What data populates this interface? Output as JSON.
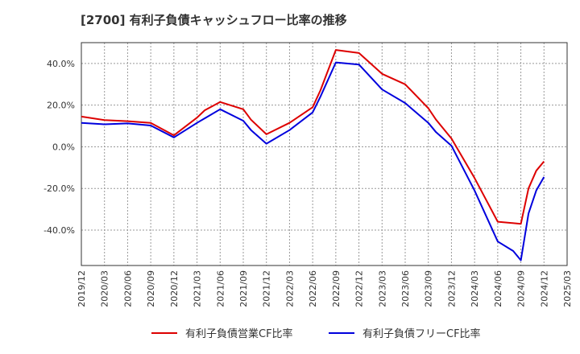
{
  "chart_data": {
    "type": "line",
    "title": "[2700]  有利子負債キャッシュフロー比率の推移",
    "xlabel": "",
    "ylabel": "",
    "ylim": [
      -57,
      50
    ],
    "grid": true,
    "legend": "bottom-center",
    "x_ticks": [
      "2019/12",
      "2020/03",
      "2020/06",
      "2020/09",
      "2020/12",
      "2021/03",
      "2021/06",
      "2021/09",
      "2021/12",
      "2022/03",
      "2022/06",
      "2022/09",
      "2022/12",
      "2023/03",
      "2023/06",
      "2023/09",
      "2023/12",
      "2024/03",
      "2024/06",
      "2024/09",
      "2024/12",
      "2025/03"
    ],
    "y_ticks": [
      {
        "value": 40,
        "label": "40.0%"
      },
      {
        "value": 20,
        "label": "20.0%"
      },
      {
        "value": 0,
        "label": "0.0%"
      },
      {
        "value": -20,
        "label": "-20.0%"
      },
      {
        "value": -40,
        "label": "-40.0%"
      }
    ],
    "series": [
      {
        "name": "有利子負債営業CF比率",
        "color": "#dd0000",
        "points": [
          [
            "2019/12",
            14.5
          ],
          [
            "2020/03",
            12.8
          ],
          [
            "2020/06",
            12.3
          ],
          [
            "2020/09",
            11.5
          ],
          [
            "2020/12",
            5.5
          ],
          [
            "2021/03",
            14.0
          ],
          [
            "2021/04",
            17.5
          ],
          [
            "2021/06",
            21.5
          ],
          [
            "2021/09",
            18.0
          ],
          [
            "2021/10",
            13.0
          ],
          [
            "2021/12",
            6.0
          ],
          [
            "2022/03",
            11.5
          ],
          [
            "2022/06",
            19.0
          ],
          [
            "2022/07",
            27.0
          ],
          [
            "2022/09",
            46.5
          ],
          [
            "2022/12",
            45.0
          ],
          [
            "2023/03",
            35.0
          ],
          [
            "2023/06",
            30.0
          ],
          [
            "2023/09",
            18.5
          ],
          [
            "2023/10",
            13.0
          ],
          [
            "2023/12",
            4.0
          ],
          [
            "2024/03",
            -15.0
          ],
          [
            "2024/06",
            -36.0
          ],
          [
            "2024/09",
            -37.0
          ],
          [
            "2024/10",
            -20.0
          ],
          [
            "2024/11",
            -11.5
          ],
          [
            "2024/12",
            -7.0
          ]
        ]
      },
      {
        "name": "有利子負債フリーCF比率",
        "color": "#0000dd",
        "points": [
          [
            "2019/12",
            11.5
          ],
          [
            "2020/03",
            10.8
          ],
          [
            "2020/06",
            11.2
          ],
          [
            "2020/09",
            10.2
          ],
          [
            "2020/12",
            4.5
          ],
          [
            "2021/03",
            11.5
          ],
          [
            "2021/06",
            18.0
          ],
          [
            "2021/09",
            12.5
          ],
          [
            "2021/10",
            8.0
          ],
          [
            "2021/12",
            1.5
          ],
          [
            "2022/03",
            8.0
          ],
          [
            "2022/06",
            16.5
          ],
          [
            "2022/07",
            24.0
          ],
          [
            "2022/09",
            40.5
          ],
          [
            "2022/12",
            39.5
          ],
          [
            "2023/03",
            27.5
          ],
          [
            "2023/06",
            21.0
          ],
          [
            "2023/09",
            11.5
          ],
          [
            "2023/10",
            7.0
          ],
          [
            "2023/12",
            0.5
          ],
          [
            "2024/03",
            -21.0
          ],
          [
            "2024/06",
            -45.5
          ],
          [
            "2024/08",
            -50.0
          ],
          [
            "2024/09",
            -54.5
          ],
          [
            "2024/10",
            -32.0
          ],
          [
            "2024/11",
            -21.0
          ],
          [
            "2024/12",
            -14.5
          ]
        ]
      }
    ]
  }
}
